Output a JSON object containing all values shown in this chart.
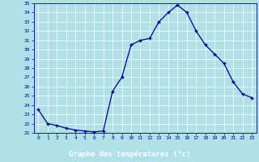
{
  "hours": [
    0,
    1,
    2,
    3,
    4,
    5,
    6,
    7,
    8,
    9,
    10,
    11,
    12,
    13,
    14,
    15,
    16,
    17,
    18,
    19,
    20,
    21,
    22,
    23
  ],
  "temperatures": [
    23.5,
    22.0,
    21.8,
    21.5,
    21.3,
    21.2,
    21.1,
    21.2,
    25.5,
    27.0,
    30.5,
    31.0,
    31.2,
    33.0,
    34.0,
    34.8,
    34.0,
    32.0,
    30.5,
    29.5,
    28.5,
    26.5,
    25.2,
    24.8
  ],
  "ylim": [
    21,
    35
  ],
  "yticks": [
    21,
    22,
    23,
    24,
    25,
    26,
    27,
    28,
    29,
    30,
    31,
    32,
    33,
    34,
    35
  ],
  "xlabel": "Graphe des températures (°c)",
  "line_color": "#00008b",
  "marker": "+",
  "bg_color": "#b0e0e8",
  "grid_color": "#ffffff",
  "xlabel_color": "#00008b",
  "tick_color": "#00008b",
  "bottom_bar_bg": "#3333aa",
  "bottom_bar_text": "#ffffff",
  "figsize": [
    3.2,
    2.0
  ],
  "dpi": 100
}
